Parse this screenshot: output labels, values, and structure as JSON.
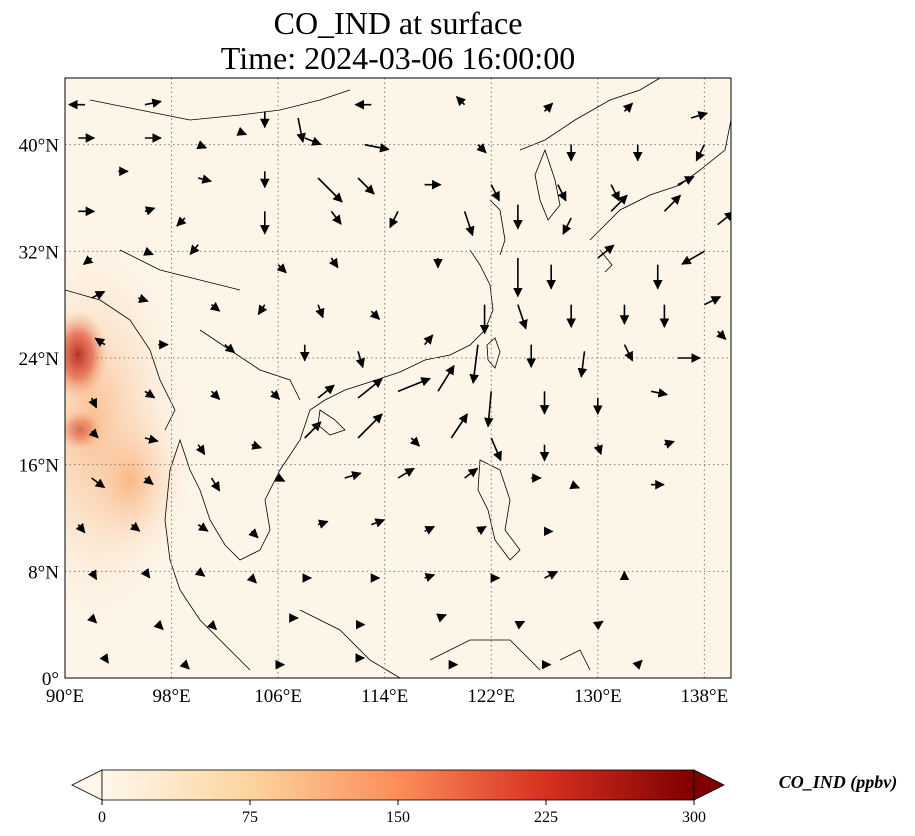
{
  "title_line1": "CO_IND at surface",
  "title_line2": "Time: 2024-03-06 16:00:00",
  "map": {
    "extent": {
      "lon_min": 90,
      "lon_max": 140,
      "lat_min": 0,
      "lat_max": 45
    },
    "gridlines": "dotted",
    "background_color": "#fdf5e8",
    "lon_ticks": [
      {
        "value": 90,
        "label": "90°E"
      },
      {
        "value": 98,
        "label": "98°E"
      },
      {
        "value": 106,
        "label": "106°E"
      },
      {
        "value": 114,
        "label": "114°E"
      },
      {
        "value": 122,
        "label": "122°E"
      },
      {
        "value": 130,
        "label": "130°E"
      },
      {
        "value": 138,
        "label": "138°E"
      }
    ],
    "lat_ticks": [
      {
        "value": 0,
        "label": "0°"
      },
      {
        "value": 8,
        "label": "8°N"
      },
      {
        "value": 16,
        "label": "16°N"
      },
      {
        "value": 24,
        "label": "24°N"
      },
      {
        "value": 32,
        "label": "32°N"
      },
      {
        "value": 40,
        "label": "40°N"
      }
    ]
  },
  "colorbar": {
    "label": "CO_IND (ppbv)",
    "colormap": "OrRd",
    "min": 0,
    "max": 300,
    "extend": "both",
    "ticks": [
      {
        "value": 0,
        "label": "0"
      },
      {
        "value": 75,
        "label": "75"
      },
      {
        "value": 150,
        "label": "150"
      },
      {
        "value": 225,
        "label": "225"
      },
      {
        "value": 300,
        "label": "300"
      }
    ],
    "colors": [
      "#fff7ec",
      "#fdd49e",
      "#fc8d59",
      "#d7301f",
      "#7f0000"
    ]
  },
  "wind_vectors": [
    {
      "lon": 91.5,
      "lat": 43,
      "u": -1,
      "v": 0
    },
    {
      "lon": 96,
      "lat": 43,
      "u": 1,
      "v": 0.2
    },
    {
      "lon": 105,
      "lat": 42.5,
      "u": 0,
      "v": -1
    },
    {
      "lon": 107.5,
      "lat": 42,
      "u": 0.3,
      "v": -1.5
    },
    {
      "lon": 113,
      "lat": 43,
      "u": -1,
      "v": 0
    },
    {
      "lon": 120,
      "lat": 43,
      "u": -0.5,
      "v": 0.5
    },
    {
      "lon": 126,
      "lat": 42.5,
      "u": 0.5,
      "v": 0.5
    },
    {
      "lon": 132,
      "lat": 42.5,
      "u": 0.5,
      "v": 0.5
    },
    {
      "lon": 137,
      "lat": 42,
      "u": 1,
      "v": 0.3
    },
    {
      "lon": 91,
      "lat": 40.5,
      "u": 1,
      "v": 0
    },
    {
      "lon": 96,
      "lat": 40.5,
      "u": 1,
      "v": 0
    },
    {
      "lon": 100,
      "lat": 40,
      "u": 0.5,
      "v": -0.2
    },
    {
      "lon": 103,
      "lat": 41,
      "u": 0.5,
      "v": -0.2
    },
    {
      "lon": 108,
      "lat": 40.5,
      "u": 1,
      "v": -0.4
    },
    {
      "lon": 112.5,
      "lat": 40,
      "u": 1.5,
      "v": -0.3
    },
    {
      "lon": 121,
      "lat": 40,
      "u": 0.5,
      "v": -0.5
    },
    {
      "lon": 128,
      "lat": 40,
      "u": 0,
      "v": -1
    },
    {
      "lon": 133,
      "lat": 40,
      "u": 0,
      "v": -1
    },
    {
      "lon": 138,
      "lat": 40,
      "u": -0.5,
      "v": -1
    },
    {
      "lon": 94,
      "lat": 38,
      "u": 0.6,
      "v": 0
    },
    {
      "lon": 100,
      "lat": 37.5,
      "u": 0.8,
      "v": -0.2
    },
    {
      "lon": 105,
      "lat": 38,
      "u": 0,
      "v": -1
    },
    {
      "lon": 109,
      "lat": 37.5,
      "u": 1.5,
      "v": -1.5
    },
    {
      "lon": 112,
      "lat": 37.5,
      "u": 1,
      "v": -1
    },
    {
      "lon": 117,
      "lat": 37,
      "u": 1,
      "v": 0
    },
    {
      "lon": 122,
      "lat": 37,
      "u": 0.5,
      "v": -1
    },
    {
      "lon": 127,
      "lat": 37,
      "u": 0.5,
      "v": -1
    },
    {
      "lon": 131,
      "lat": 37,
      "u": 0.5,
      "v": -1
    },
    {
      "lon": 136,
      "lat": 37,
      "u": 1,
      "v": 0.5
    },
    {
      "lon": 91,
      "lat": 35,
      "u": 1,
      "v": 0
    },
    {
      "lon": 96,
      "lat": 35,
      "u": 0.6,
      "v": 0.2
    },
    {
      "lon": 99,
      "lat": 34.5,
      "u": -0.5,
      "v": -0.5
    },
    {
      "lon": 105,
      "lat": 35,
      "u": 0,
      "v": -1.4
    },
    {
      "lon": 110,
      "lat": 35,
      "u": 0.6,
      "v": -0.8
    },
    {
      "lon": 115,
      "lat": 35,
      "u": -0.5,
      "v": -1
    },
    {
      "lon": 120,
      "lat": 35,
      "u": 0.5,
      "v": -1.5
    },
    {
      "lon": 124,
      "lat": 35.5,
      "u": 0,
      "v": -1.5
    },
    {
      "lon": 128,
      "lat": 34.5,
      "u": -0.5,
      "v": -1
    },
    {
      "lon": 131,
      "lat": 35,
      "u": 1,
      "v": 1
    },
    {
      "lon": 135,
      "lat": 35,
      "u": 1,
      "v": 1
    },
    {
      "lon": 139,
      "lat": 34,
      "u": 1,
      "v": 0.8
    },
    {
      "lon": 92,
      "lat": 31.5,
      "u": -0.5,
      "v": -0.4
    },
    {
      "lon": 96,
      "lat": 32,
      "u": 0.5,
      "v": -0.2
    },
    {
      "lon": 100,
      "lat": 32.5,
      "u": -0.5,
      "v": -0.6
    },
    {
      "lon": 106,
      "lat": 31,
      "u": 0.5,
      "v": -0.5
    },
    {
      "lon": 110,
      "lat": 31.5,
      "u": 0.4,
      "v": -0.6
    },
    {
      "lon": 118,
      "lat": 31.5,
      "u": 0,
      "v": -0.6
    },
    {
      "lon": 124,
      "lat": 31.5,
      "u": 0,
      "v": -2.4
    },
    {
      "lon": 126.5,
      "lat": 31,
      "u": 0,
      "v": -1.5
    },
    {
      "lon": 130,
      "lat": 31.5,
      "u": 1,
      "v": 0.8
    },
    {
      "lon": 134.5,
      "lat": 31,
      "u": 0,
      "v": -1.5
    },
    {
      "lon": 138,
      "lat": 32,
      "u": -1.4,
      "v": -0.8
    },
    {
      "lon": 92,
      "lat": 28.5,
      "u": 0.8,
      "v": 0.4
    },
    {
      "lon": 95.5,
      "lat": 28.5,
      "u": 0.6,
      "v": -0.2
    },
    {
      "lon": 101,
      "lat": 28,
      "u": 0.5,
      "v": -0.4
    },
    {
      "lon": 105,
      "lat": 28,
      "u": -0.4,
      "v": -0.6
    },
    {
      "lon": 109,
      "lat": 28,
      "u": 0.3,
      "v": -0.8
    },
    {
      "lon": 113,
      "lat": 27.5,
      "u": 0.5,
      "v": -0.5
    },
    {
      "lon": 121.5,
      "lat": 28,
      "u": 0,
      "v": -1.8
    },
    {
      "lon": 124,
      "lat": 28,
      "u": 0.5,
      "v": -1.5
    },
    {
      "lon": 128,
      "lat": 28,
      "u": 0,
      "v": -1.4
    },
    {
      "lon": 132,
      "lat": 28,
      "u": 0,
      "v": -1.2
    },
    {
      "lon": 135,
      "lat": 28,
      "u": 0,
      "v": -1.4
    },
    {
      "lon": 138,
      "lat": 28,
      "u": 1,
      "v": 0.5
    },
    {
      "lon": 93,
      "lat": 25,
      "u": -0.6,
      "v": 0.4
    },
    {
      "lon": 97,
      "lat": 25,
      "u": 0.6,
      "v": 0
    },
    {
      "lon": 102,
      "lat": 25,
      "u": 0.6,
      "v": -0.5
    },
    {
      "lon": 108,
      "lat": 25,
      "u": 0,
      "v": -1
    },
    {
      "lon": 112,
      "lat": 24.5,
      "u": 0.3,
      "v": -1
    },
    {
      "lon": 117,
      "lat": 25,
      "u": 0.5,
      "v": 0.6
    },
    {
      "lon": 121,
      "lat": 25,
      "u": -0.3,
      "v": -2.4
    },
    {
      "lon": 125,
      "lat": 25,
      "u": 0,
      "v": -1.4
    },
    {
      "lon": 129,
      "lat": 24.5,
      "u": -0.2,
      "v": -1.6
    },
    {
      "lon": 132,
      "lat": 25,
      "u": 0.5,
      "v": -1
    },
    {
      "lon": 136,
      "lat": 24,
      "u": 1.4,
      "v": 0
    },
    {
      "lon": 139,
      "lat": 26,
      "u": 0.5,
      "v": -0.5
    },
    {
      "lon": 92,
      "lat": 21,
      "u": 0.3,
      "v": -0.6
    },
    {
      "lon": 96,
      "lat": 21.5,
      "u": 0.6,
      "v": -0.4
    },
    {
      "lon": 101,
      "lat": 21.5,
      "u": 0.5,
      "v": -0.5
    },
    {
      "lon": 105.5,
      "lat": 21.5,
      "u": 0.5,
      "v": -0.5
    },
    {
      "lon": 109,
      "lat": 21,
      "u": 1,
      "v": 0.8
    },
    {
      "lon": 112,
      "lat": 21,
      "u": 1.5,
      "v": 1.2
    },
    {
      "lon": 115,
      "lat": 21.5,
      "u": 2,
      "v": 0.8
    },
    {
      "lon": 118,
      "lat": 21.5,
      "u": 1,
      "v": 1.6
    },
    {
      "lon": 122,
      "lat": 21.5,
      "u": -0.2,
      "v": -2.2
    },
    {
      "lon": 126,
      "lat": 21.5,
      "u": 0,
      "v": -1.4
    },
    {
      "lon": 130,
      "lat": 21,
      "u": 0,
      "v": -1
    },
    {
      "lon": 134,
      "lat": 21.5,
      "u": 1,
      "v": -0.2
    },
    {
      "lon": 92,
      "lat": 18.5,
      "u": 0.4,
      "v": -0.4
    },
    {
      "lon": 96,
      "lat": 18,
      "u": 0.8,
      "v": -0.2
    },
    {
      "lon": 100,
      "lat": 17.5,
      "u": 0.4,
      "v": -0.6
    },
    {
      "lon": 104,
      "lat": 17.5,
      "u": 0.6,
      "v": -0.2
    },
    {
      "lon": 108,
      "lat": 18,
      "u": 1,
      "v": 1
    },
    {
      "lon": 112,
      "lat": 18,
      "u": 1.5,
      "v": 1.5
    },
    {
      "lon": 116,
      "lat": 18,
      "u": 0.5,
      "v": -0.5
    },
    {
      "lon": 119,
      "lat": 18,
      "u": 1,
      "v": 1.5
    },
    {
      "lon": 122,
      "lat": 18,
      "u": 0.6,
      "v": -1.4
    },
    {
      "lon": 126,
      "lat": 17.5,
      "u": 0,
      "v": -1
    },
    {
      "lon": 130,
      "lat": 17.5,
      "u": 0.2,
      "v": -0.6
    },
    {
      "lon": 135,
      "lat": 17.5,
      "u": 0.6,
      "v": 0.2
    },
    {
      "lon": 92,
      "lat": 15,
      "u": 0.8,
      "v": -0.6
    },
    {
      "lon": 96,
      "lat": 15,
      "u": 0.5,
      "v": -0.4
    },
    {
      "lon": 101,
      "lat": 15,
      "u": 0.5,
      "v": -0.8
    },
    {
      "lon": 106,
      "lat": 15,
      "u": 0.4,
      "v": -0.2
    },
    {
      "lon": 111,
      "lat": 15,
      "u": 1,
      "v": 0.3
    },
    {
      "lon": 115,
      "lat": 15,
      "u": 1,
      "v": 0.6
    },
    {
      "lon": 120,
      "lat": 15,
      "u": 0.8,
      "v": 0.6
    },
    {
      "lon": 125,
      "lat": 15,
      "u": 0.6,
      "v": 0
    },
    {
      "lon": 128,
      "lat": 14.5,
      "u": 0.5,
      "v": -0.2
    },
    {
      "lon": 134,
      "lat": 14.5,
      "u": 0.8,
      "v": 0
    },
    {
      "lon": 91,
      "lat": 11.5,
      "u": 0.4,
      "v": -0.5
    },
    {
      "lon": 95,
      "lat": 11.5,
      "u": 0.5,
      "v": -0.4
    },
    {
      "lon": 100,
      "lat": 11.5,
      "u": 0.6,
      "v": -0.4
    },
    {
      "lon": 104,
      "lat": 11,
      "u": 0.4,
      "v": -0.4
    },
    {
      "lon": 109,
      "lat": 11.5,
      "u": 0.6,
      "v": 0.2
    },
    {
      "lon": 113,
      "lat": 11.5,
      "u": 0.8,
      "v": 0.3
    },
    {
      "lon": 117,
      "lat": 11,
      "u": 0.6,
      "v": 0.3
    },
    {
      "lon": 121,
      "lat": 11,
      "u": 0.5,
      "v": 0.3
    },
    {
      "lon": 126,
      "lat": 11,
      "u": 0.5,
      "v": 0
    },
    {
      "lon": 92,
      "lat": 8,
      "u": 0.3,
      "v": -0.5
    },
    {
      "lon": 96,
      "lat": 8,
      "u": 0.3,
      "v": -0.4
    },
    {
      "lon": 100,
      "lat": 8,
      "u": 0.4,
      "v": -0.3
    },
    {
      "lon": 104,
      "lat": 7.5,
      "u": 0.3,
      "v": -0.3
    },
    {
      "lon": 108,
      "lat": 7.5,
      "u": 0.4,
      "v": 0
    },
    {
      "lon": 113,
      "lat": 7.5,
      "u": 0.5,
      "v": 0
    },
    {
      "lon": 117,
      "lat": 7.5,
      "u": 0.6,
      "v": 0.2
    },
    {
      "lon": 122,
      "lat": 7.5,
      "u": 0.5,
      "v": 0
    },
    {
      "lon": 126,
      "lat": 7.5,
      "u": 0.8,
      "v": 0.4
    },
    {
      "lon": 132,
      "lat": 7.5,
      "u": 0,
      "v": 0.4
    },
    {
      "lon": 92,
      "lat": 4.5,
      "u": 0.3,
      "v": -0.3
    },
    {
      "lon": 97,
      "lat": 4,
      "u": 0.3,
      "v": -0.3
    },
    {
      "lon": 101,
      "lat": 4,
      "u": 0.3,
      "v": -0.3
    },
    {
      "lon": 107,
      "lat": 4.5,
      "u": 0.4,
      "v": 0
    },
    {
      "lon": 112,
      "lat": 4,
      "u": 0.4,
      "v": 0
    },
    {
      "lon": 118,
      "lat": 4.5,
      "u": 0.5,
      "v": 0.2
    },
    {
      "lon": 124,
      "lat": 4,
      "u": 0.4,
      "v": 0.2
    },
    {
      "lon": 130,
      "lat": 4,
      "u": 0.3,
      "v": 0.2
    },
    {
      "lon": 93,
      "lat": 1.5,
      "u": 0.2,
      "v": -0.3
    },
    {
      "lon": 99,
      "lat": 1,
      "u": 0.2,
      "v": -0.2
    },
    {
      "lon": 106,
      "lat": 1,
      "u": 0.3,
      "v": 0
    },
    {
      "lon": 112,
      "lat": 1.5,
      "u": 0.3,
      "v": 0
    },
    {
      "lon": 119,
      "lat": 1,
      "u": 0.3,
      "v": 0
    },
    {
      "lon": 126,
      "lat": 1,
      "u": 0.3,
      "v": 0
    },
    {
      "lon": 133,
      "lat": 1,
      "u": 0.2,
      "v": 0.2
    }
  ]
}
